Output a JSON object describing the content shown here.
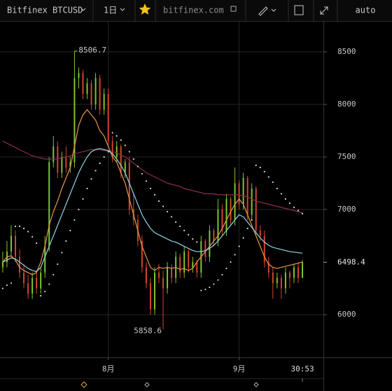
{
  "toolbar": {
    "symbol": "Bitfinex BTCUSD",
    "interval": "1日",
    "site": "bitfinex.com",
    "scale_mode": "auto"
  },
  "chart_data": {
    "type": "candlestick",
    "xlim": [
      -0.65,
      75.97
    ],
    "xticks": [
      {
        "value": 25,
        "label": "8月"
      },
      {
        "value": 56,
        "label": "9月"
      }
    ],
    "countdown": "30:53",
    "ylim": [
      5594,
      8786
    ],
    "yticks": [
      6000,
      7000,
      7500,
      8000,
      8500
    ],
    "grid": true,
    "up_color": "#7ec52f",
    "down_color": "#d2462f",
    "candles": {
      "open": [
        6450,
        6500,
        6600,
        6750,
        6550,
        6400,
        6300,
        6200,
        6350,
        6250,
        6400,
        6650,
        7450,
        7600,
        7350,
        7500,
        7400,
        7450,
        8250,
        8300,
        8100,
        8200,
        8000,
        8250,
        7950,
        8100,
        7650,
        7500,
        7600,
        7350,
        7450,
        7000,
        6900,
        6700,
        6450,
        6300,
        6050,
        6400,
        6350,
        6250,
        6450,
        6350,
        6550,
        6400,
        6600,
        6450,
        6500,
        6400,
        6700,
        6550,
        6800,
        6700,
        7000,
        6800,
        7100,
        6900,
        7250,
        7050,
        7300,
        6950,
        7200,
        6800,
        6750,
        6500,
        6400,
        6300,
        6350,
        6250,
        6400,
        6350,
        6450,
        6350
      ],
      "high": [
        6600,
        6700,
        6850,
        6800,
        6620,
        6480,
        6380,
        6400,
        6420,
        6450,
        6750,
        7500,
        7700,
        7650,
        7550,
        7600,
        7500,
        8506.7,
        8350,
        8330,
        8250,
        8230,
        8300,
        8280,
        8150,
        8150,
        7700,
        7650,
        7620,
        7480,
        7500,
        7150,
        6950,
        6750,
        6500,
        6350,
        6450,
        6480,
        6420,
        6500,
        6480,
        6600,
        6580,
        6650,
        6620,
        6550,
        6520,
        6750,
        6720,
        6850,
        6820,
        7100,
        7050,
        7150,
        7120,
        7400,
        7280,
        7350,
        7320,
        7250,
        7220,
        6850,
        6800,
        6550,
        6450,
        6400,
        6380,
        6450,
        6420,
        6480,
        6500,
        6520
      ],
      "low": [
        6400,
        6450,
        6550,
        6500,
        6350,
        6250,
        6150,
        6150,
        6200,
        6200,
        6350,
        6600,
        7400,
        7300,
        7300,
        7350,
        7350,
        7400,
        8150,
        8050,
        8050,
        7950,
        7950,
        7900,
        7900,
        7600,
        7450,
        7450,
        7300,
        7300,
        6950,
        6850,
        6650,
        6400,
        6250,
        6000,
        6000,
        6300,
        5858.6,
        6200,
        6300,
        6300,
        6350,
        6350,
        6400,
        6400,
        6350,
        6350,
        6500,
        6500,
        6650,
        6650,
        6750,
        6750,
        6850,
        6850,
        7000,
        7000,
        6900,
        6900,
        6750,
        6700,
        6450,
        6350,
        6150,
        6250,
        6150,
        6200,
        6250,
        6300,
        6300,
        6350
      ],
      "close": [
        6500,
        6600,
        6750,
        6550,
        6400,
        6300,
        6200,
        6350,
        6250,
        6400,
        6650,
        7450,
        7600,
        7350,
        7500,
        7400,
        7450,
        8250,
        8300,
        8100,
        8200,
        8000,
        8250,
        7950,
        8100,
        7650,
        7500,
        7600,
        7350,
        7450,
        7000,
        6900,
        6700,
        6450,
        6300,
        6050,
        6400,
        6350,
        6250,
        6450,
        6350,
        6550,
        6400,
        6600,
        6450,
        6500,
        6400,
        6700,
        6550,
        6800,
        6700,
        7000,
        6800,
        7100,
        6900,
        7250,
        7050,
        7300,
        6950,
        7200,
        6800,
        6750,
        6500,
        6400,
        6300,
        6350,
        6250,
        6400,
        6350,
        6450,
        6350,
        6498.4
      ]
    },
    "high_label_index": 17,
    "low_label_index": 38,
    "indicators": [
      {
        "type": "line",
        "color": "#8a2f45",
        "values": [
          7650,
          7630,
          7610,
          7590,
          7570,
          7550,
          7530,
          7510,
          7500,
          7490,
          7480,
          7480,
          7480,
          7480,
          7490,
          7500,
          7510,
          7530,
          7540,
          7550,
          7560,
          7570,
          7570,
          7570,
          7560,
          7560,
          7550,
          7540,
          7520,
          7500,
          7470,
          7440,
          7410,
          7380,
          7350,
          7330,
          7310,
          7290,
          7270,
          7250,
          7240,
          7230,
          7220,
          7200,
          7190,
          7180,
          7170,
          7160,
          7150,
          7150,
          7150,
          7140,
          7140,
          7140,
          7140,
          7140,
          7140,
          7130,
          7120,
          7100,
          7080,
          7070,
          7060,
          7050,
          7040,
          7030,
          7020,
          7010,
          7000,
          6990,
          6980,
          6970
        ]
      },
      {
        "type": "line",
        "color": "#e8964a",
        "values": [
          6500,
          6550,
          6560,
          6520,
          6450,
          6420,
          6400,
          6380,
          6400,
          6500,
          6650,
          6850,
          6980,
          7080,
          7200,
          7300,
          7400,
          7600,
          7800,
          7900,
          7950,
          7900,
          7850,
          7750,
          7700,
          7600,
          7500,
          7450,
          7350,
          7250,
          7100,
          6950,
          6800,
          6650,
          6550,
          6450,
          6420,
          6450,
          6440,
          6450,
          6440,
          6450,
          6430,
          6440,
          6420,
          6440,
          6500,
          6550,
          6600,
          6650,
          6700,
          6750,
          6820,
          6900,
          6980,
          7050,
          7100,
          7050,
          6950,
          6850,
          6750,
          6650,
          6550,
          6480,
          6450,
          6440,
          6450,
          6460,
          6470,
          6480,
          6490,
          6500
        ]
      },
      {
        "type": "line",
        "color": "#8fd6e8",
        "values": [
          6500,
          6520,
          6540,
          6530,
          6500,
          6470,
          6440,
          6420,
          6410,
          6450,
          6550,
          6650,
          6750,
          6850,
          6950,
          7050,
          7150,
          7250,
          7350,
          7430,
          7500,
          7550,
          7570,
          7580,
          7570,
          7560,
          7530,
          7480,
          7420,
          7350,
          7250,
          7150,
          7050,
          6950,
          6880,
          6820,
          6780,
          6760,
          6740,
          6720,
          6700,
          6690,
          6670,
          6650,
          6630,
          6610,
          6600,
          6600,
          6610,
          6630,
          6660,
          6700,
          6750,
          6800,
          6850,
          6900,
          6950,
          6930,
          6880,
          6830,
          6780,
          6730,
          6690,
          6660,
          6640,
          6630,
          6620,
          6610,
          6600,
          6595,
          6590,
          6585
        ]
      },
      {
        "type": "dots",
        "color": "#d8d8d8",
        "values": [
          6250,
          6280,
          6300,
          6840,
          6840,
          6820,
          6790,
          6740,
          6680,
          6180,
          6220,
          6290,
          6380,
          6480,
          6590,
          6700,
          6800,
          6900,
          7000,
          7100,
          7200,
          7290,
          7370,
          7440,
          7500,
          7550,
          7730,
          7700,
          7660,
          7610,
          7550,
          7480,
          7410,
          7340,
          7270,
          7200,
          7140,
          7080,
          7030,
          6980,
          6930,
          6880,
          6840,
          6800,
          6760,
          6720,
          6690,
          6230,
          6240,
          6260,
          6290,
          6330,
          6380,
          6440,
          6500,
          6570,
          6650,
          6730,
          6820,
          6900,
          7420,
          7400,
          7360,
          7310,
          7260,
          7200,
          7150,
          7100,
          7060,
          7020,
          6990,
          6960
        ]
      }
    ]
  }
}
